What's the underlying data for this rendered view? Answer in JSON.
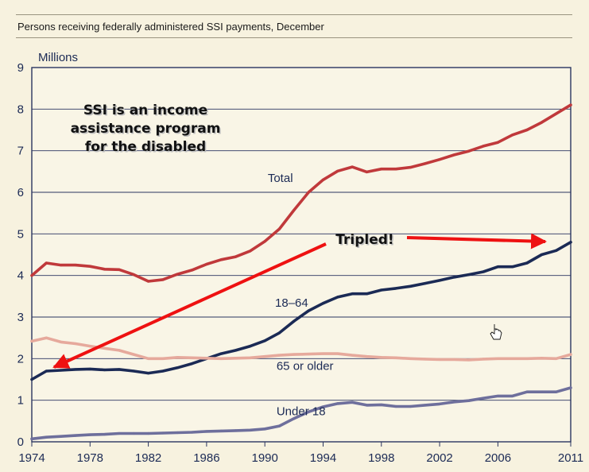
{
  "chart_data": {
    "type": "line",
    "title": "Persons receiving federally administered SSI payments, December",
    "ylabel": "Millions",
    "xlabel": "",
    "xlim": [
      1974,
      2011
    ],
    "ylim": [
      0,
      9
    ],
    "x_ticks": [
      "1974",
      "1978",
      "1982",
      "1986",
      "1990",
      "1994",
      "1998",
      "2002",
      "2006",
      "2011"
    ],
    "y_ticks": [
      "0",
      "1",
      "2",
      "3",
      "4",
      "5",
      "6",
      "7",
      "8",
      "9"
    ],
    "grid": "horizontal",
    "x": [
      1974,
      1975,
      1976,
      1977,
      1978,
      1979,
      1980,
      1981,
      1982,
      1983,
      1984,
      1985,
      1986,
      1987,
      1988,
      1989,
      1990,
      1991,
      1992,
      1993,
      1994,
      1995,
      1996,
      1997,
      1998,
      1999,
      2000,
      2001,
      2002,
      2003,
      2004,
      2005,
      2006,
      2007,
      2008,
      2009,
      2010,
      2011
    ],
    "series": [
      {
        "name": "Total",
        "color": "#c0393b",
        "values": [
          4.0,
          4.3,
          4.25,
          4.25,
          4.22,
          4.15,
          4.14,
          4.02,
          3.86,
          3.9,
          4.03,
          4.13,
          4.27,
          4.38,
          4.45,
          4.59,
          4.82,
          5.12,
          5.57,
          6.0,
          6.3,
          6.51,
          6.61,
          6.49,
          6.56,
          6.56,
          6.6,
          6.69,
          6.79,
          6.9,
          6.99,
          7.11,
          7.2,
          7.38,
          7.5,
          7.68,
          7.89,
          8.1
        ]
      },
      {
        "name": "18–64",
        "color": "#1b2a55",
        "values": [
          1.5,
          1.7,
          1.72,
          1.74,
          1.75,
          1.73,
          1.74,
          1.7,
          1.65,
          1.7,
          1.78,
          1.88,
          2.0,
          2.12,
          2.2,
          2.3,
          2.43,
          2.62,
          2.9,
          3.15,
          3.33,
          3.48,
          3.56,
          3.56,
          3.65,
          3.69,
          3.74,
          3.81,
          3.88,
          3.96,
          4.02,
          4.09,
          4.21,
          4.21,
          4.3,
          4.5,
          4.6,
          4.8
        ]
      },
      {
        "name": "65 or older",
        "color": "#e6a99c",
        "values": [
          2.42,
          2.5,
          2.4,
          2.36,
          2.3,
          2.25,
          2.2,
          2.1,
          2.0,
          2.0,
          2.03,
          2.02,
          2.01,
          2.0,
          2.01,
          2.02,
          2.05,
          2.08,
          2.1,
          2.11,
          2.12,
          2.12,
          2.08,
          2.05,
          2.03,
          2.02,
          2.0,
          1.99,
          1.98,
          1.98,
          1.97,
          1.99,
          2.0,
          2.0,
          2.0,
          2.01,
          2.0,
          2.1
        ]
      },
      {
        "name": "Under 18",
        "color": "#6e6f9c",
        "values": [
          0.07,
          0.11,
          0.13,
          0.15,
          0.17,
          0.18,
          0.2,
          0.2,
          0.2,
          0.21,
          0.22,
          0.23,
          0.25,
          0.26,
          0.27,
          0.28,
          0.31,
          0.38,
          0.56,
          0.72,
          0.84,
          0.92,
          0.95,
          0.88,
          0.89,
          0.85,
          0.85,
          0.88,
          0.91,
          0.96,
          0.99,
          1.05,
          1.1,
          1.1,
          1.2,
          1.2,
          1.2,
          1.3
        ]
      }
    ],
    "series_labels": [
      {
        "text": "Total",
        "x": 1990.2,
        "y": 6.25
      },
      {
        "text": "18–64",
        "x": 1990.7,
        "y": 3.25
      },
      {
        "text": "65 or older",
        "x": 1990.8,
        "y": 1.73
      },
      {
        "text": "Under 18",
        "x": 1990.8,
        "y": 0.64
      }
    ],
    "annotations": {
      "note_lines": [
        "SSI is an income",
        "assistance program",
        "for the disabled"
      ],
      "tripled": "Tripled!"
    },
    "arrow_color": "#ee1111"
  }
}
